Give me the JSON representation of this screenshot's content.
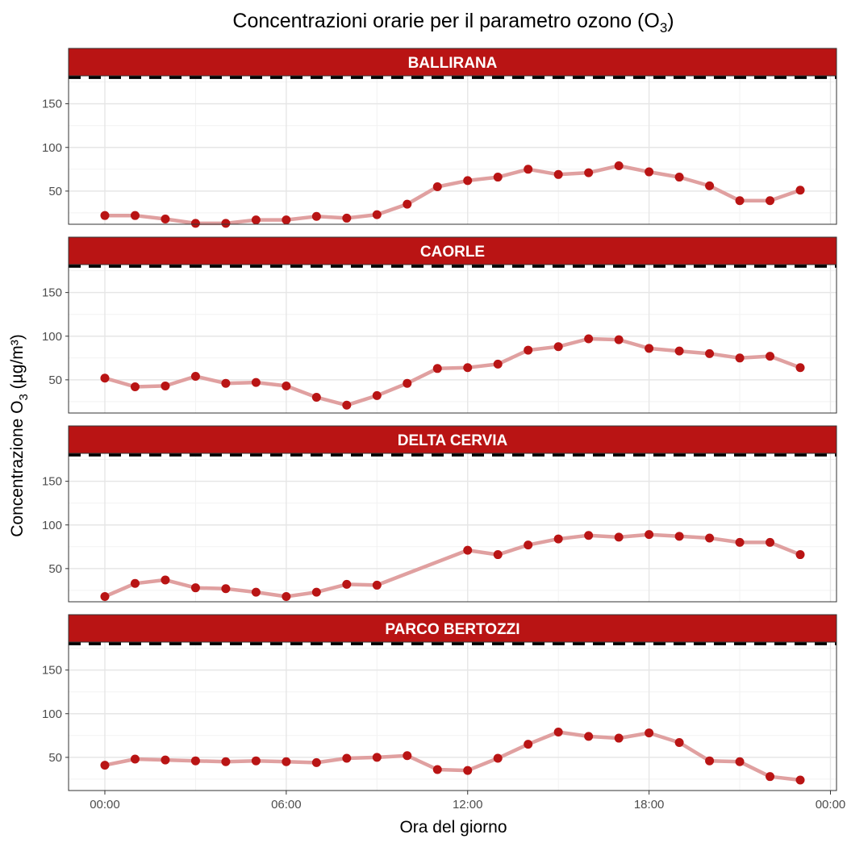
{
  "chart_data": {
    "type": "line",
    "title": "Concentrazioni orarie per il parametro ozono (O3)",
    "title_main": "Concentrazioni orarie per il parametro ozono (O",
    "title_sub": "3",
    "title_end": ")",
    "xlabel": "Ora del giorno",
    "ylabel": "Concentrazione O3 (µg/m³)",
    "ylabel_main": "Concentrazione O",
    "ylabel_sub": "3",
    "ylabel_end": " (µg/m³)",
    "x_tick_labels": [
      "00:00",
      "06:00",
      "12:00",
      "18:00",
      "00:00"
    ],
    "x_tick_hours": [
      0,
      6,
      12,
      18,
      24
    ],
    "xlim": [
      -1.2,
      24.2
    ],
    "ylim": [
      12,
      182
    ],
    "y_ticks": [
      50,
      100,
      150
    ],
    "y_tick_labels": [
      "50",
      "100",
      "150"
    ],
    "threshold": 180,
    "grid": true,
    "colors": {
      "strip": "#b91414",
      "line": "#e0a0a0",
      "point": "#b91414",
      "threshold": "#000000"
    },
    "facets": [
      {
        "station": "BALLIRANA",
        "x": [
          0,
          1,
          2,
          3,
          4,
          5,
          6,
          7,
          8,
          9,
          10,
          11,
          12,
          13,
          14,
          15,
          16,
          17,
          18,
          19,
          20,
          21,
          22,
          23
        ],
        "values": [
          22,
          22,
          18,
          13,
          13,
          17,
          17,
          21,
          19,
          23,
          35,
          55,
          62,
          66,
          75,
          69,
          71,
          79,
          72,
          66,
          56,
          39,
          39,
          51
        ]
      },
      {
        "station": "CAORLE",
        "x": [
          0,
          1,
          2,
          3,
          4,
          5,
          6,
          7,
          8,
          9,
          10,
          11,
          12,
          13,
          14,
          15,
          16,
          17,
          18,
          19,
          20,
          21,
          22,
          23
        ],
        "values": [
          52,
          42,
          43,
          54,
          46,
          47,
          43,
          30,
          21,
          32,
          46,
          63,
          64,
          68,
          84,
          88,
          97,
          96,
          86,
          83,
          80,
          75,
          77,
          64
        ]
      },
      {
        "station": "DELTA CERVIA",
        "x": [
          0,
          1,
          2,
          3,
          4,
          5,
          6,
          7,
          8,
          9,
          12,
          13,
          14,
          15,
          16,
          17,
          18,
          19,
          20,
          21,
          22,
          23
        ],
        "values": [
          18,
          33,
          37,
          28,
          27,
          23,
          18,
          23,
          32,
          31,
          71,
          66,
          77,
          84,
          88,
          86,
          89,
          87,
          85,
          80,
          80,
          66
        ]
      },
      {
        "station": "PARCO BERTOZZI",
        "x": [
          0,
          1,
          2,
          3,
          4,
          5,
          6,
          7,
          8,
          9,
          10,
          11,
          12,
          13,
          14,
          15,
          16,
          17,
          18,
          19,
          20,
          21,
          22,
          23
        ],
        "values": [
          41,
          48,
          47,
          46,
          45,
          46,
          45,
          44,
          49,
          50,
          52,
          36,
          35,
          49,
          65,
          79,
          74,
          72,
          78,
          67,
          46,
          45,
          28,
          24
        ]
      }
    ]
  }
}
